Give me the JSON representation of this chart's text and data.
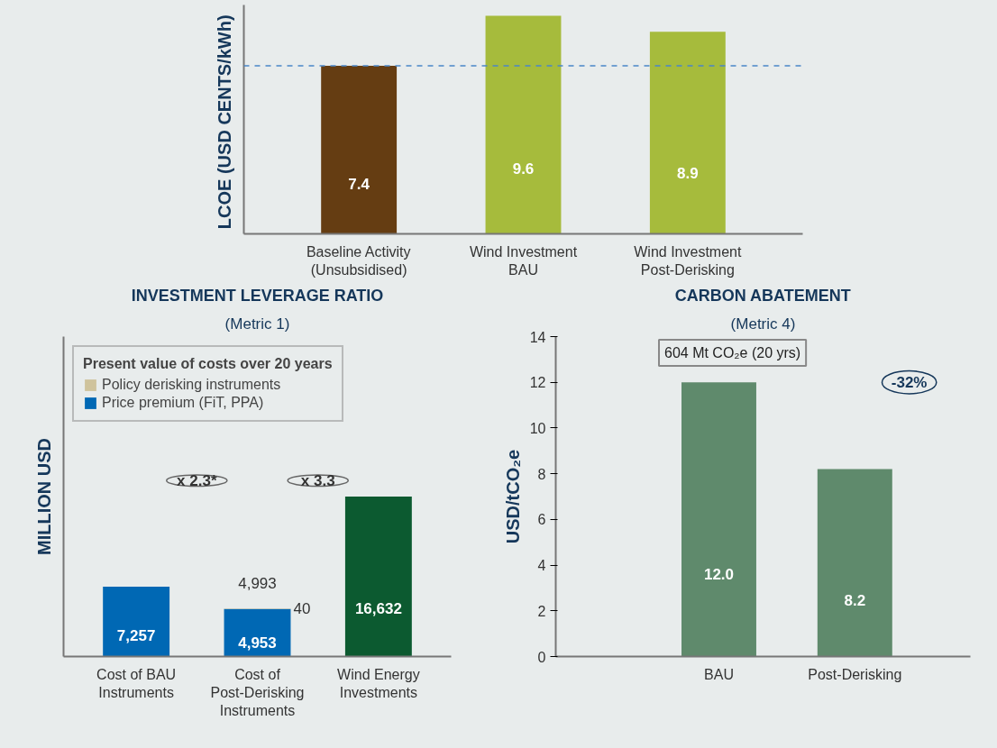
{
  "chart_data": [
    {
      "type": "bar",
      "ylabel": "LCOE  (USD CENTS/kWh)",
      "categories": [
        "Baseline Activity\n(Unsubsidised)",
        "Wind Investment\nBAU",
        "Wind Investment\nPost-Derisking"
      ],
      "values": [
        7.4,
        9.6,
        8.9
      ],
      "colors": [
        "#653d12",
        "#a6bb3c",
        "#a6bb3c"
      ],
      "data_labels": true,
      "tick_labels": "x",
      "grid": false,
      "ref_lines": [
        {
          "axis": "y",
          "value": 7.4,
          "label": null,
          "color": "#4a86c8",
          "line_style": "dashed"
        }
      ]
    },
    {
      "type": "bar",
      "title": "INVESTMENT LEVERAGE RATIO",
      "subtitle": "(Metric 1)",
      "ylabel": "MILLION USD",
      "legend_title": "Present value of costs over 20 years",
      "categories": [
        "Cost of BAU\nInstruments",
        "Cost of\nPost-Derisking\nInstruments",
        "Wind Energy\nInvestments"
      ],
      "stacked": true,
      "series": [
        {
          "name": "Price premium (FiT, PPA)",
          "color": "#0068b4",
          "colors": [
            "#0068b4",
            "#0068b4",
            "#0c5a30"
          ],
          "values": [
            7257,
            4953,
            16632
          ],
          "value_labels": [
            "7,257",
            "4,953",
            "16,632"
          ]
        },
        {
          "name": "Policy derisking instruments",
          "color": "#cfc39c",
          "values": [
            null,
            40,
            null
          ],
          "value_labels": [
            null,
            "40",
            null
          ]
        }
      ],
      "totals": [
        null,
        "4,993",
        null
      ],
      "annotations": [
        "x 2.3*",
        "x 3.3"
      ],
      "legend": "top left",
      "tick_labels": "x",
      "grid": false
    },
    {
      "type": "bar",
      "title": "CARBON ABATEMENT",
      "subtitle": "(Metric 4)",
      "ylabel": "USD/tCO₂e",
      "categories": [
        "BAU",
        "Post-Derisking"
      ],
      "values": [
        12.0,
        8.2
      ],
      "value_labels": [
        "12.0",
        "8.2"
      ],
      "color": "#5f8a6c",
      "ylim": [
        0,
        14
      ],
      "yticks": [
        0,
        2,
        4,
        6,
        8,
        10,
        12,
        14
      ],
      "grid": false,
      "annotations": [
        "604 Mt CO₂e (20 yrs)",
        "-32%"
      ]
    }
  ]
}
